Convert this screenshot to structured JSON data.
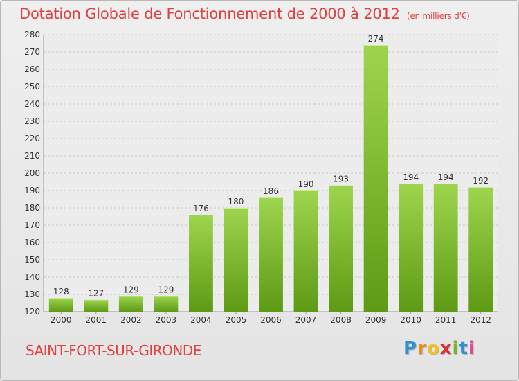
{
  "header": {
    "title": "Dotation Globale de Fonctionnement de 2000 à 2012",
    "unit": "(en milliers d'€)"
  },
  "footer": {
    "commune": "SAINT-FORT-SUR-GIRONDE",
    "brand_letters": [
      "P",
      "r",
      "o",
      "x",
      "i",
      "t",
      "i"
    ],
    "brand_colors": [
      "#2f8fd8",
      "#f08a1c",
      "#f0c419",
      "#d7312e",
      "#7ab32e",
      "#2f8fd8",
      "#e24a8c"
    ]
  },
  "colors": {
    "bar_top": "#9ed54e",
    "bar_bottom": "#5e9a14",
    "accent": "#e0403e"
  },
  "chart_data": {
    "type": "bar",
    "title": "Dotation Globale de Fonctionnement de 2000 à 2012",
    "subtitle": "(en milliers d'€)",
    "categories": [
      "2000",
      "2001",
      "2002",
      "2003",
      "2004",
      "2005",
      "2006",
      "2007",
      "2008",
      "2009",
      "2010",
      "2011",
      "2012"
    ],
    "values": [
      128,
      127,
      129,
      129,
      176,
      180,
      186,
      190,
      193,
      274,
      194,
      194,
      192
    ],
    "ylim": [
      120,
      280
    ],
    "yticks": [
      120,
      130,
      140,
      150,
      160,
      170,
      180,
      190,
      200,
      210,
      220,
      230,
      240,
      250,
      260,
      270,
      280
    ],
    "grid": true
  }
}
